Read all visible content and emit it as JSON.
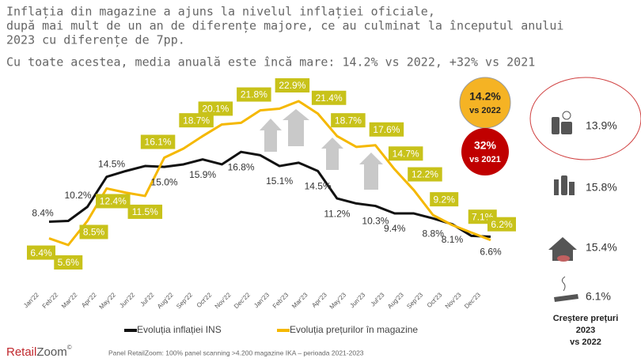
{
  "chart_data": {
    "type": "line",
    "title": [
      "Inflația din magazine a ajuns la nivelul inflației oficiale,",
      "după mai mult de un an de diferențe majore, ce au culminat la începutul anului",
      "2023 cu diferențe de 7pp."
    ],
    "subtitle": "Cu toate acestea, media anuală este încă mare: 14.2% vs 2022, +32% vs 2021",
    "categories": [
      "Jan'22",
      "Feb'22",
      "Mar'22",
      "Apr'22",
      "May'22",
      "Jun'22",
      "Jul'22",
      "Aug'22",
      "Sep'22",
      "Oct'22",
      "Nov'22",
      "Dec'22",
      "Jan'23",
      "Feb'23",
      "Mar'23",
      "Apr'23",
      "May'23",
      "Jun'23",
      "Jul'23",
      "Aug'23",
      "Sep'23",
      "Oct'23",
      "Nov'23",
      "Dec'23"
    ],
    "series": [
      {
        "name": "Evoluția inflației INS",
        "color": "#111111",
        "values": [
          8.4,
          8.5,
          10.2,
          13.8,
          14.5,
          15.1,
          15.0,
          15.3,
          15.9,
          15.3,
          16.8,
          16.4,
          15.1,
          15.5,
          14.5,
          11.2,
          10.6,
          10.3,
          9.4,
          9.4,
          8.8,
          8.1,
          6.7,
          6.6
        ],
        "value_labels": [
          "8.4%",
          null,
          "10.2%",
          null,
          "14.5%",
          null,
          "15.0%",
          null,
          "15.9%",
          null,
          "16.8%",
          null,
          "15.1%",
          null,
          "14.5%",
          "11.2%",
          null,
          "10.3%",
          "9.4%",
          null,
          "8.8%",
          "8.1%",
          null,
          "6.6%"
        ]
      },
      {
        "name": "Evoluția prețurilor în magazine",
        "color": "#f5b800",
        "values": [
          6.4,
          5.6,
          8.5,
          12.4,
          11.9,
          11.5,
          16.1,
          17.2,
          18.7,
          20.1,
          20.3,
          21.8,
          22.0,
          22.9,
          21.4,
          18.7,
          17.4,
          17.6,
          14.7,
          12.2,
          9.2,
          8.0,
          7.1,
          6.2
        ],
        "value_labels": [
          "6.4%",
          "5.6%",
          "8.5%",
          "12.4%",
          null,
          "11.5%",
          "16.1%",
          null,
          "18.7%",
          "20.1%",
          null,
          "21.8%",
          null,
          "22.9%",
          "21.4%",
          "18.7%",
          null,
          "17.6%",
          "14.7%",
          "12.2%",
          "9.2%",
          null,
          "7.1%",
          "6.2%"
        ]
      }
    ],
    "label_color": "#c8c21a",
    "highlights": [
      {
        "text": "14.2%",
        "sub": "vs 2022",
        "color": "#f5b324"
      },
      {
        "text": "32%",
        "sub": "vs 2021",
        "color": "#c00000"
      }
    ],
    "category_growth": {
      "values": [
        "13.9%",
        "15.8%",
        "15.4%",
        "6.1%"
      ],
      "caption": [
        "Creștere prețuri",
        "2023",
        "vs 2022"
      ]
    },
    "brand": [
      "Retail",
      "Zoom",
      "©"
    ],
    "footnote": "Panel RetailZoom: 100% panel scanning  >4.200 magazine IKA – perioada 2021-2023"
  }
}
